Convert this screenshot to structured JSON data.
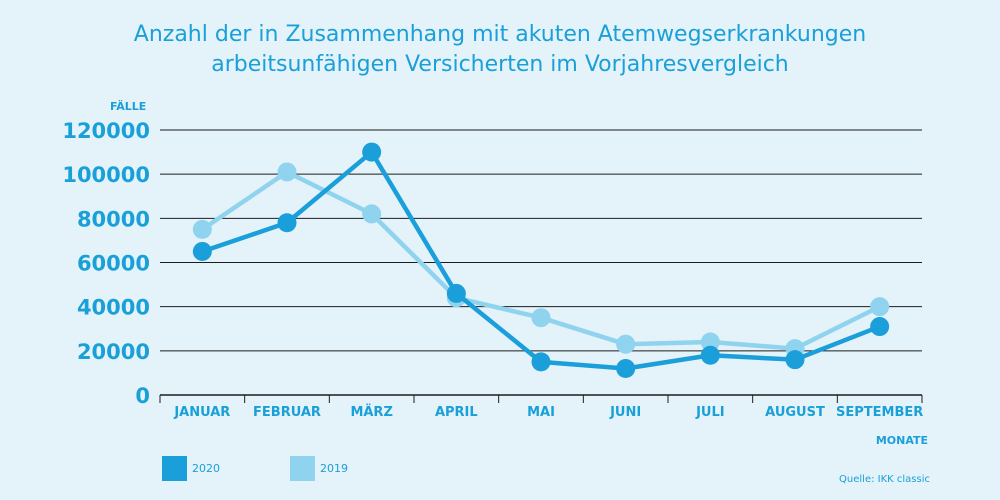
{
  "chart_data": {
    "type": "line",
    "title_lines": [
      "Anzahl der in Zusammenhang mit akuten Atemwegserkrankungen",
      "arbeitsunfähigen Versicherten im Vorjahresvergleich"
    ],
    "ylabel": "FÄLLE",
    "xlabel": "MONATE",
    "categories": [
      "JANUAR",
      "FEBRUAR",
      "MÄRZ",
      "APRIL",
      "MAI",
      "JUNI",
      "JULI",
      "AUGUST",
      "SEPTEMBER"
    ],
    "yticks": [
      "0",
      "20000",
      "40000",
      "60000",
      "80000",
      "100000",
      "120000"
    ],
    "ylim": [
      0,
      120000
    ],
    "series": [
      {
        "name": "2019",
        "color": "#8fd3ee",
        "values": [
          75000,
          101000,
          82000,
          44000,
          35000,
          23000,
          24000,
          21000,
          40000
        ]
      },
      {
        "name": "2020",
        "color": "#1a9fdb",
        "values": [
          65000,
          78000,
          110000,
          46000,
          15000,
          12000,
          18000,
          16000,
          31000
        ]
      }
    ],
    "legend": [
      {
        "name": "2020",
        "color": "#1a9fdb"
      },
      {
        "name": "2019",
        "color": "#8fd3ee"
      }
    ],
    "source": "Quelle: IKK classic",
    "grid": true
  }
}
